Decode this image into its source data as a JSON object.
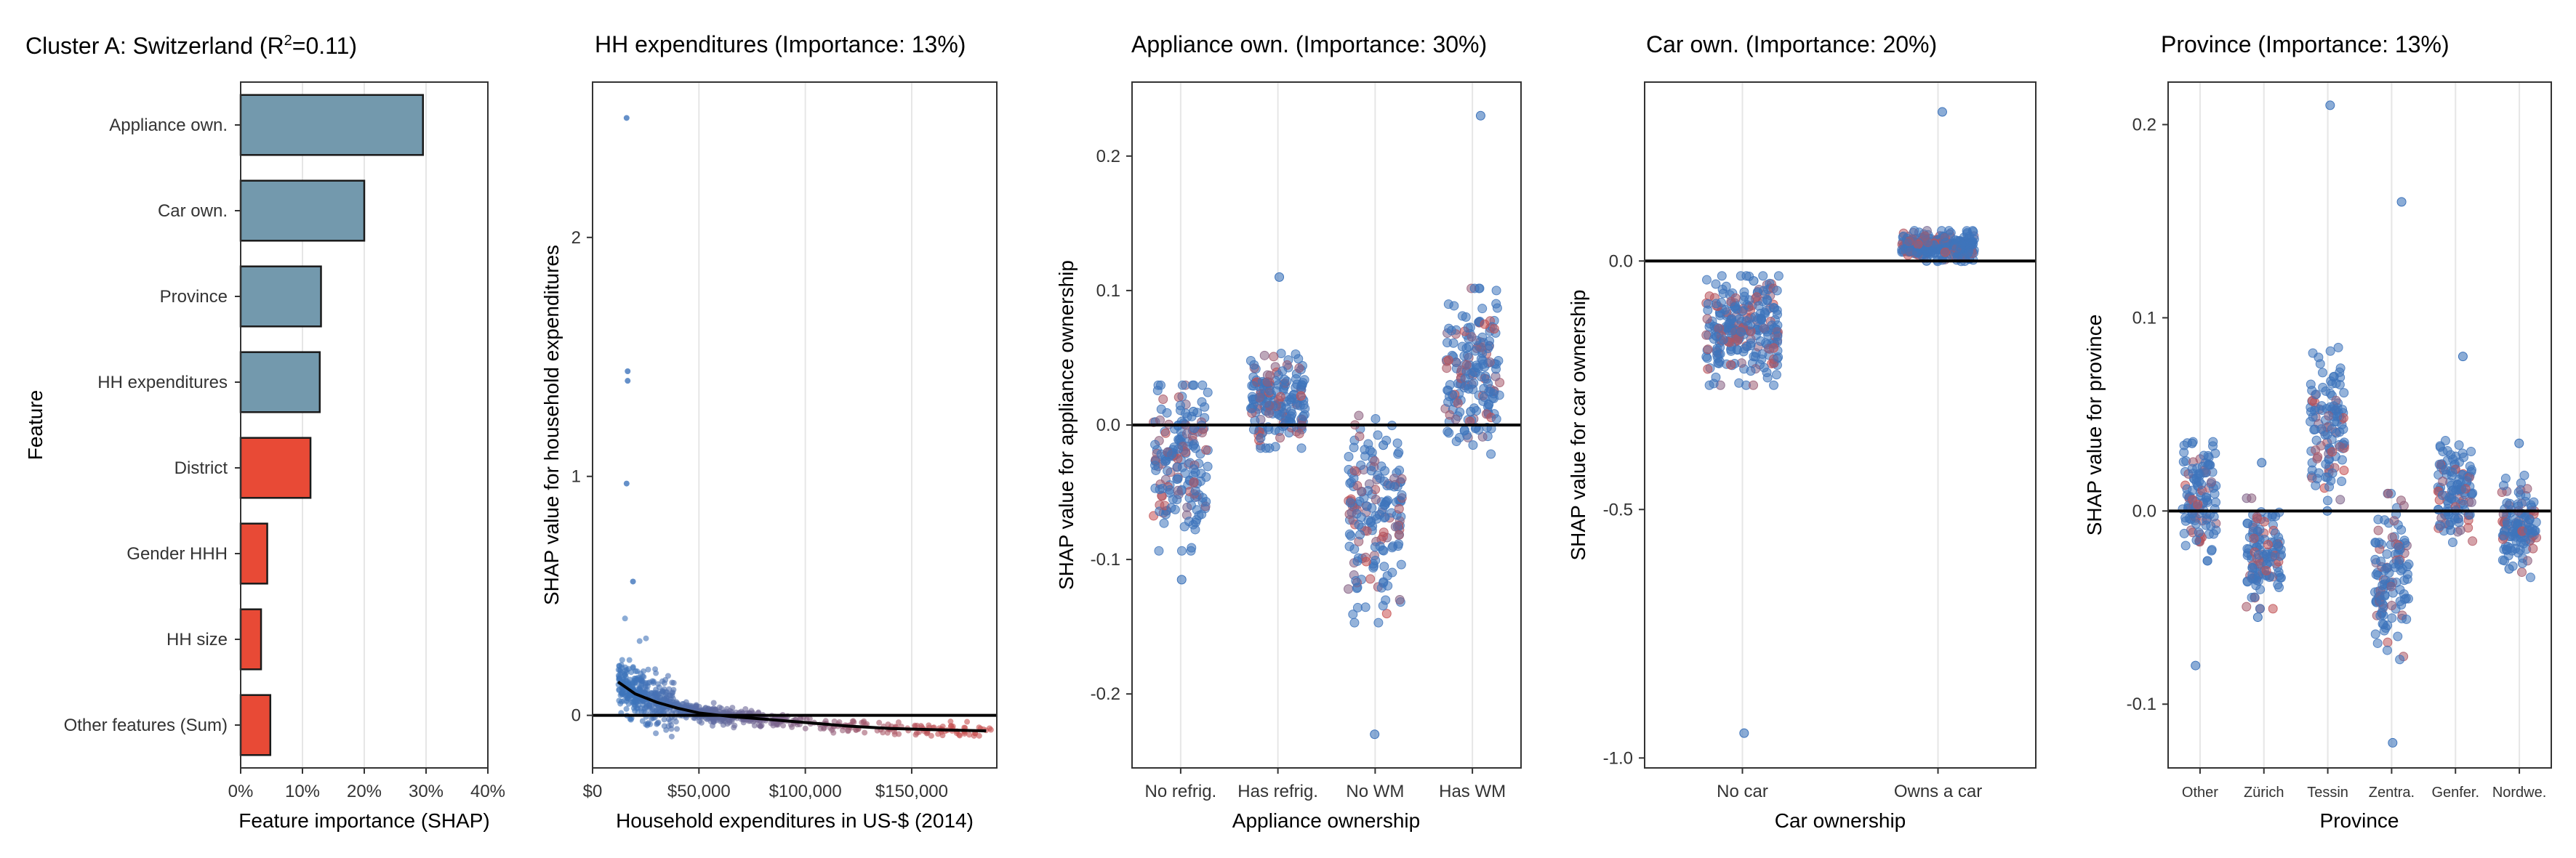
{
  "colors": {
    "bar_blue": "#7399ad",
    "bar_red": "#e84a36",
    "point_blue": "#3e74bb",
    "point_red": "#c85050",
    "grid": "#e6e6e6"
  },
  "chart_data": [
    {
      "type": "bar",
      "orientation": "horizontal",
      "title": "Cluster A: Switzerland (R²=0.11)",
      "title_main": "Cluster A: Switzerland (R",
      "title_sup": "2",
      "title_tail": "=0.11)",
      "xlabel": "Feature importance (SHAP)",
      "ylabel": "Feature",
      "xlim": [
        0,
        0.4
      ],
      "xticks": [
        0,
        0.1,
        0.2,
        0.3,
        0.4
      ],
      "xtick_labels": [
        "0%",
        "10%",
        "20%",
        "30%",
        "40%"
      ],
      "grid": "vertical",
      "categories": [
        "Appliance own.",
        "Car own.",
        "Province",
        "HH expenditures",
        "District",
        "Gender HHH",
        "HH size",
        "Other features (Sum)"
      ],
      "values": [
        0.295,
        0.2,
        0.13,
        0.128,
        0.113,
        0.043,
        0.033,
        0.048
      ],
      "bar_colors": [
        "#7399ad",
        "#7399ad",
        "#7399ad",
        "#7399ad",
        "#e84a36",
        "#e84a36",
        "#e84a36",
        "#e84a36"
      ]
    },
    {
      "type": "scatter",
      "title": "HH expenditures (Importance: 13%)",
      "xlabel": "Household expenditures in US-$ (2014)",
      "ylabel": "SHAP value for household expenditures",
      "xlim": [
        0,
        190000
      ],
      "ylim": [
        -0.22,
        2.65
      ],
      "xticks": [
        0,
        50000,
        100000,
        150000
      ],
      "xtick_labels": [
        "$0",
        "$50,000",
        "$100,000",
        "$150,000"
      ],
      "yticks": [
        0,
        1,
        2
      ],
      "ytick_labels": [
        "0",
        "1",
        "2"
      ],
      "grid": "vertical",
      "trend_line": {
        "x": [
          12000,
          20000,
          30000,
          40000,
          50000,
          65000,
          80000,
          100000,
          120000,
          140000,
          160000,
          185000
        ],
        "y": [
          0.14,
          0.09,
          0.055,
          0.03,
          0.01,
          -0.005,
          -0.015,
          -0.03,
          -0.045,
          -0.055,
          -0.06,
          -0.065
        ]
      },
      "outliers": {
        "x": [
          16000,
          16500,
          16500,
          16000,
          19000
        ],
        "y": [
          2.5,
          1.44,
          1.4,
          0.97,
          0.56
        ]
      },
      "point_color_gradient": "blue (low expenditures) to red (high expenditures)"
    },
    {
      "type": "scatter",
      "title": "Appliance own. (Importance: 30%)",
      "xlabel": "Appliance ownership",
      "ylabel": "SHAP value for appliance ownership",
      "categories": [
        "No refrig.",
        "Has refrig.",
        "No WM",
        "Has WM"
      ],
      "ylim": [
        -0.255,
        0.255
      ],
      "yticks": [
        -0.2,
        -0.1,
        0.0,
        0.1,
        0.2
      ],
      "ytick_labels": [
        "-0.2",
        "-0.1",
        "0.0",
        "0.1",
        "0.2"
      ],
      "grid": "vertical",
      "groups": [
        {
          "center": -0.032,
          "spread": 0.028,
          "min": -0.115,
          "max": 0.01
        },
        {
          "center": 0.018,
          "spread": 0.016,
          "min": 0.0,
          "max": 0.11
        },
        {
          "center": -0.07,
          "spread": 0.035,
          "min": -0.23,
          "max": -0.015
        },
        {
          "center": 0.04,
          "spread": 0.028,
          "min": 0.01,
          "max": 0.23
        }
      ]
    },
    {
      "type": "scatter",
      "title": "Car own. (Importance: 20%)",
      "xlabel": "Car ownership",
      "ylabel": "SHAP value for car ownership",
      "categories": [
        "No car",
        "Owns a car"
      ],
      "ylim": [
        -1.02,
        0.36
      ],
      "yticks": [
        -1.0,
        -0.5,
        0.0
      ],
      "ytick_labels": [
        "-1.0",
        "-0.5",
        "0.0"
      ],
      "grid": "vertical",
      "groups": [
        {
          "center": -0.14,
          "spread": 0.05,
          "min": -0.95,
          "max": -0.04
        },
        {
          "center": 0.03,
          "spread": 0.014,
          "min": 0.0,
          "max": 0.3
        }
      ]
    },
    {
      "type": "scatter",
      "title": "Province (Importance: 13%)",
      "xlabel": "Province",
      "ylabel": "SHAP value for province",
      "categories": [
        "Other",
        "Zürich",
        "Tessin",
        "Zentra.",
        "Genfer.",
        "Nordwe."
      ],
      "ylim": [
        -0.133,
        0.222
      ],
      "yticks": [
        -0.1,
        0.0,
        0.1,
        0.2
      ],
      "ytick_labels": [
        "-0.1",
        "0.0",
        "0.1",
        "0.2"
      ],
      "grid": "vertical",
      "groups": [
        {
          "center": 0.005,
          "spread": 0.014,
          "min": -0.08,
          "max": 0.035
        },
        {
          "center": -0.022,
          "spread": 0.013,
          "min": -0.055,
          "max": 0.025
        },
        {
          "center": 0.045,
          "spread": 0.018,
          "min": 0.0,
          "max": 0.21
        },
        {
          "center": -0.035,
          "spread": 0.02,
          "min": -0.12,
          "max": 0.16
        },
        {
          "center": 0.01,
          "spread": 0.012,
          "min": -0.01,
          "max": 0.08
        },
        {
          "center": -0.008,
          "spread": 0.012,
          "min": -0.03,
          "max": 0.035
        }
      ]
    }
  ]
}
